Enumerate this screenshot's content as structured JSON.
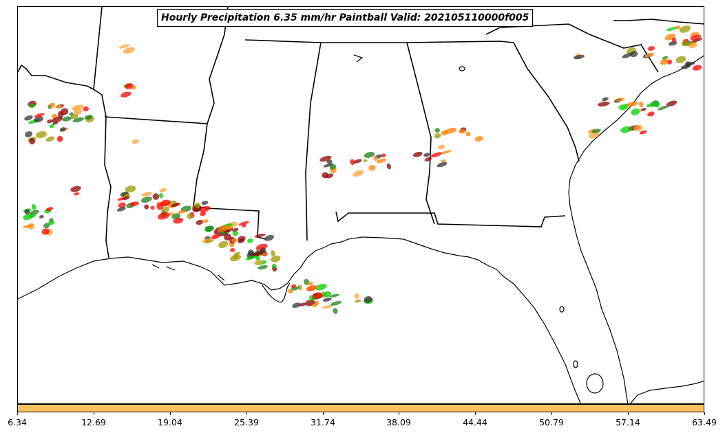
{
  "title": "Hourly Precipitation 6.35 mm/hr Paintball Valid: 202105110000f005",
  "colorbar": {
    "color": "#ffc060",
    "ticks": [
      "6.34",
      "12.69",
      "19.04",
      "25.39",
      "31.74",
      "38.09",
      "44.44",
      "50.79",
      "57.14",
      "63.49"
    ]
  },
  "member_colors": [
    "#ff0000",
    "#8b0000",
    "#ff7f00",
    "#ffa030",
    "#00cc00",
    "#1a7f1a",
    "#999900",
    "#333333"
  ]
}
